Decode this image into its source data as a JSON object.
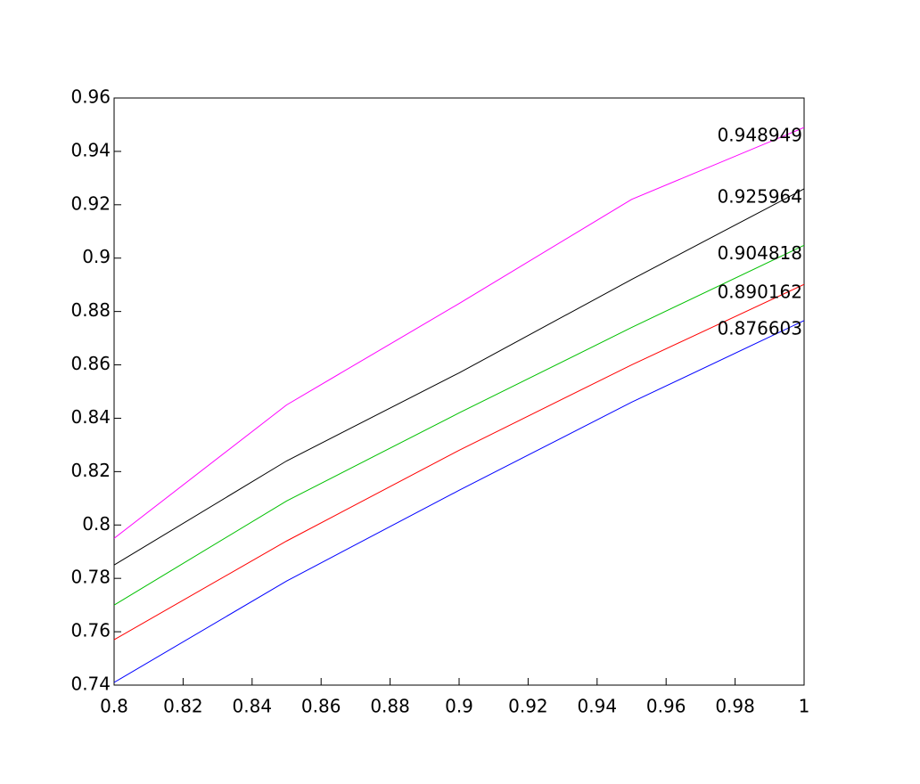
{
  "chart_data": {
    "type": "line",
    "x": [
      0.8,
      0.85,
      0.9,
      0.95,
      1
    ],
    "series": [
      {
        "color": "#ff00ff",
        "values": [
          0.795,
          0.845,
          0.883,
          0.922,
          0.948949
        ]
      },
      {
        "color": "#000000",
        "values": [
          0.785,
          0.824,
          0.857,
          0.892,
          0.925964
        ]
      },
      {
        "color": "#00c000",
        "values": [
          0.77,
          0.809,
          0.842,
          0.874,
          0.904818
        ]
      },
      {
        "color": "#ff0000",
        "values": [
          0.757,
          0.794,
          0.828,
          0.86,
          0.890162
        ]
      },
      {
        "color": "#0000ff",
        "values": [
          0.741,
          0.779,
          0.813,
          0.846,
          0.876603
        ]
      }
    ],
    "xlim": [
      0.8,
      1
    ],
    "xticks": [
      0.8,
      0.82,
      0.84,
      0.86,
      0.88,
      0.9,
      0.92,
      0.94,
      0.96,
      0.98,
      1
    ],
    "ylim": [
      0.74,
      0.96
    ],
    "yticks": [
      0.74,
      0.76,
      0.78,
      0.8,
      0.82,
      0.84,
      0.86,
      0.88,
      0.9,
      0.92,
      0.94,
      0.96
    ],
    "grid": false
  }
}
